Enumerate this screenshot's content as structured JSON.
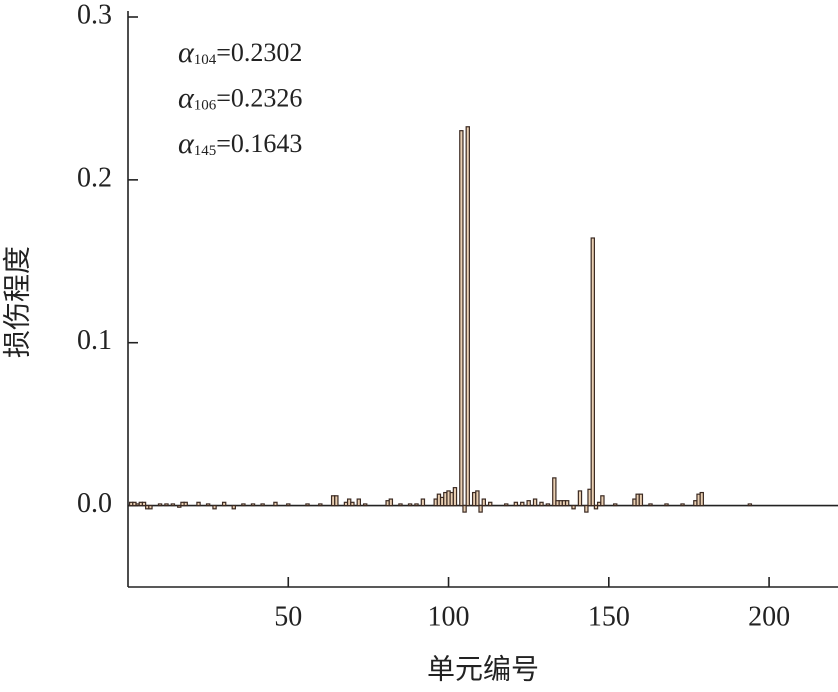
{
  "chart_data": {
    "type": "bar",
    "x_label": "单元编号",
    "y_label": "损伤程度",
    "annotations": [
      {
        "symbol": "α",
        "subscript": "104",
        "text": "=0.2302"
      },
      {
        "symbol": "α",
        "subscript": "106",
        "text": "=0.2326"
      },
      {
        "symbol": "α",
        "subscript": "145",
        "text": "=0.1643"
      }
    ],
    "x": [
      1,
      2,
      3,
      4,
      5,
      6,
      7,
      10,
      12,
      14,
      16,
      17,
      18,
      22,
      25,
      27,
      30,
      33,
      36,
      39,
      42,
      46,
      50,
      56,
      60,
      64,
      65,
      68,
      69,
      70,
      72,
      74,
      81,
      82,
      85,
      88,
      90,
      92,
      96,
      97,
      98,
      99,
      100,
      101,
      102,
      104,
      105,
      106,
      108,
      109,
      110,
      111,
      113,
      118,
      121,
      123,
      125,
      127,
      129,
      131,
      133,
      134,
      135,
      136,
      137,
      139,
      141,
      143,
      144,
      145,
      146,
      147,
      148,
      152,
      158,
      159,
      160,
      163,
      168,
      173,
      177,
      178,
      179,
      194
    ],
    "values": [
      0.002,
      0.002,
      0.001,
      0.002,
      0.002,
      -0.002,
      -0.002,
      0.001,
      0.001,
      0.001,
      -0.001,
      0.002,
      0.002,
      0.002,
      0.001,
      -0.002,
      0.002,
      -0.002,
      0.001,
      0.001,
      0.001,
      0.002,
      0.001,
      0.001,
      0.001,
      0.006,
      0.006,
      0.002,
      0.004,
      0.002,
      0.004,
      0.001,
      0.003,
      0.004,
      0.001,
      0.001,
      0.001,
      0.004,
      0.004,
      0.007,
      0.005,
      0.008,
      0.009,
      0.008,
      0.011,
      0.2302,
      -0.004,
      0.2326,
      0.008,
      0.009,
      -0.004,
      0.004,
      0.002,
      0.001,
      0.002,
      0.002,
      0.003,
      0.004,
      0.002,
      0.001,
      0.017,
      0.003,
      0.003,
      0.003,
      0.003,
      -0.002,
      0.009,
      -0.004,
      0.01,
      0.1643,
      -0.002,
      0.002,
      0.006,
      0.001,
      0.004,
      0.007,
      0.007,
      0.001,
      0.001,
      0.001,
      0.003,
      0.007,
      0.008,
      0.001
    ],
    "color": "#e9cfb2",
    "edge_color": "#3b2a22",
    "xlim": [
      0,
      221.5
    ],
    "ylim": [
      -0.05,
      0.3
    ],
    "xticks": [
      50,
      100,
      150,
      200
    ],
    "yticks": [
      {
        "value": 0,
        "label": "0.0"
      },
      0.1,
      0.2,
      0.3
    ]
  }
}
